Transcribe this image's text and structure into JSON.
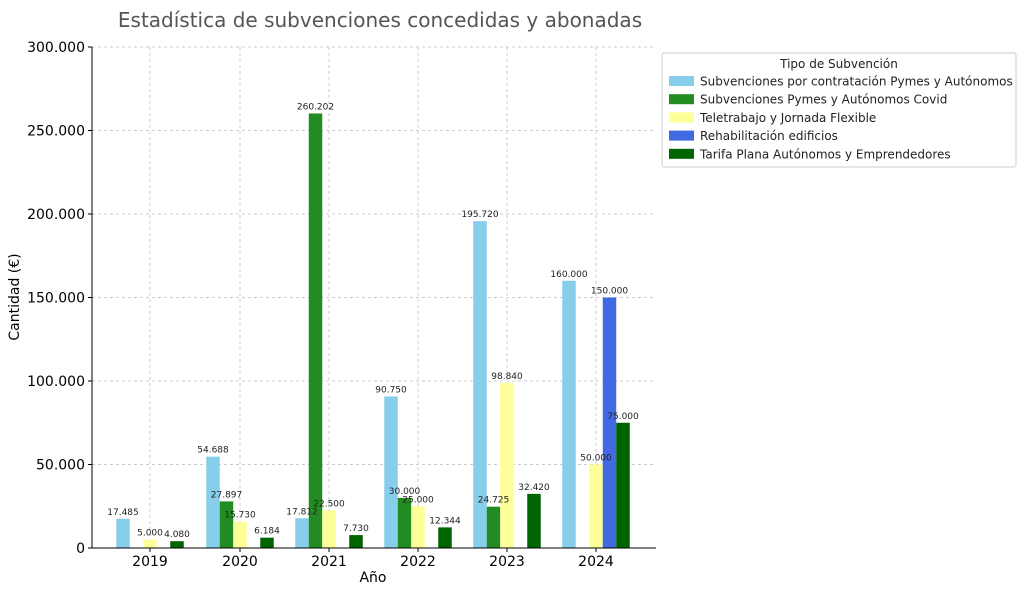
{
  "chart_data": {
    "type": "bar",
    "title": "Estadística de subvenciones concedidas y abonadas",
    "xlabel": "Año",
    "ylabel": "Cantidad (€)",
    "ylim": [
      0,
      300000
    ],
    "y_ticks": [
      0,
      50000,
      100000,
      150000,
      200000,
      250000,
      300000
    ],
    "y_tick_labels": [
      "0",
      "50.000",
      "100.000",
      "150.000",
      "200.000",
      "250.000",
      "300.000"
    ],
    "grid": true,
    "categories": [
      "2019",
      "2020",
      "2021",
      "2022",
      "2023",
      "2024"
    ],
    "legend": {
      "title": "Tipo de Subvención",
      "position": "top-right-outside"
    },
    "series": [
      {
        "name": "Subvenciones por contratación Pymes y Autónomos",
        "color": "#87CEEB",
        "values": [
          17485,
          54688,
          17812,
          90750,
          195720,
          160000
        ],
        "labels": [
          "17.485",
          "54.688",
          "17.812",
          "90.750",
          "195.720",
          "160.000"
        ]
      },
      {
        "name": "Subvenciones Pymes y Autónomos Covid",
        "color": "#228B22",
        "values": [
          null,
          27897,
          260202,
          30000,
          24725,
          null
        ],
        "labels": [
          null,
          "27.897",
          "260.202",
          "30.000",
          "24.725",
          null
        ]
      },
      {
        "name": "Teletrabajo y Jornada Flexible",
        "color": "#FFFF99",
        "values": [
          5000,
          15730,
          22500,
          25000,
          98840,
          50000
        ],
        "labels": [
          "5.000",
          "15.730",
          "22.500",
          "25.000",
          "98.840",
          "50.000"
        ]
      },
      {
        "name": "Rehabilitación edificios",
        "color": "#4169E1",
        "values": [
          null,
          null,
          null,
          null,
          null,
          150000
        ],
        "labels": [
          null,
          null,
          null,
          null,
          null,
          "150.000"
        ]
      },
      {
        "name": "Tarifa Plana Autónomos y Emprendedores",
        "color": "#006400",
        "values": [
          4080,
          6184,
          7730,
          12344,
          32420,
          75000
        ],
        "labels": [
          "4.080",
          "6.184",
          "7.730",
          "12.344",
          "32.420",
          "75.000"
        ]
      }
    ]
  }
}
